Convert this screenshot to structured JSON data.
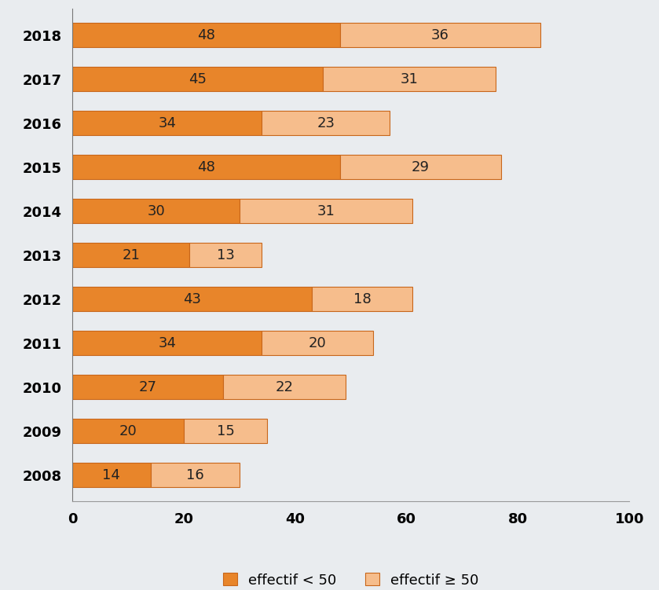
{
  "chart_data": {
    "type": "bar",
    "orientation": "horizontal",
    "stacked": true,
    "data_labels": true,
    "categories": [
      "2008",
      "2009",
      "2010",
      "2011",
      "2012",
      "2013",
      "2014",
      "2015",
      "2016",
      "2017",
      "2018"
    ],
    "series": [
      {
        "name": "effectif < 50",
        "color": "#e8852a",
        "values": [
          14,
          20,
          27,
          34,
          43,
          21,
          30,
          48,
          34,
          45,
          48
        ]
      },
      {
        "name": "effectif ≥ 50",
        "color": "#f6bd8c",
        "values": [
          16,
          15,
          22,
          20,
          18,
          13,
          31,
          29,
          23,
          31,
          36
        ]
      }
    ],
    "xlim": [
      0,
      100
    ],
    "xticks": [
      0,
      20,
      40,
      60,
      80,
      100
    ],
    "grid": false,
    "legend": "lower center"
  }
}
